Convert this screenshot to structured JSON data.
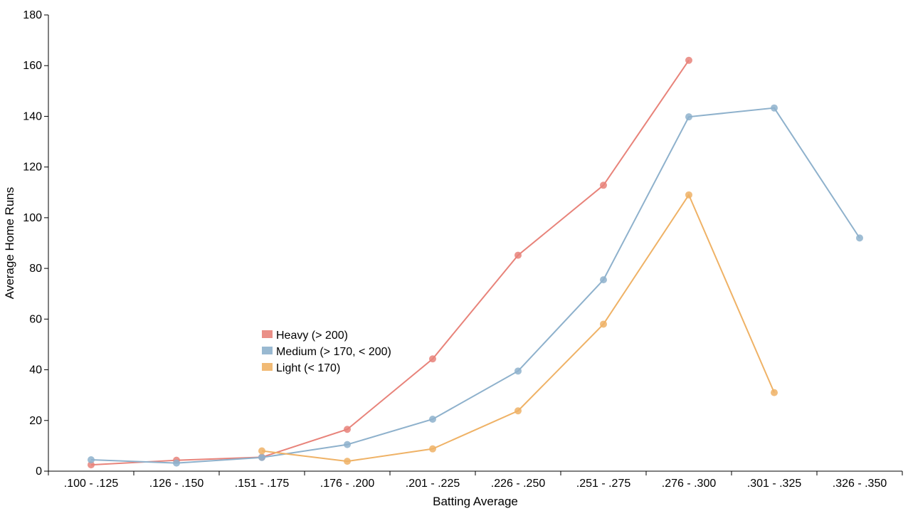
{
  "chart_data": {
    "type": "line",
    "title": "",
    "xlabel": "Batting Average",
    "ylabel": "Average Home Runs",
    "ylim": [
      0,
      180
    ],
    "yticks": [
      0,
      20,
      40,
      60,
      80,
      100,
      120,
      140,
      160,
      180
    ],
    "grid": false,
    "legend_position": "center-left",
    "categories": [
      ".100 - .125",
      ".126 - .150",
      ".151 - .175",
      ".176 - .200",
      ".201 - .225",
      ".226 - .250",
      ".251 - .275",
      ".276 - .300",
      ".301 - .325",
      ".326 - .350"
    ],
    "series": [
      {
        "name": "Heavy (> 200)",
        "color": "#e8837a",
        "values": [
          2.5,
          4.3,
          5.5,
          16.5,
          44.3,
          85.2,
          112.8,
          162.1,
          null,
          null
        ]
      },
      {
        "name": "Medium (> 170, < 200)",
        "color": "#8eb1cc",
        "values": [
          4.5,
          3.2,
          5.4,
          10.5,
          20.5,
          39.5,
          75.5,
          139.8,
          143.3,
          92.0
        ]
      },
      {
        "name": "Light (< 170)",
        "color": "#efb266",
        "values": [
          null,
          null,
          8.0,
          3.9,
          8.8,
          23.8,
          58.0,
          109.0,
          31.0,
          null
        ]
      }
    ]
  }
}
